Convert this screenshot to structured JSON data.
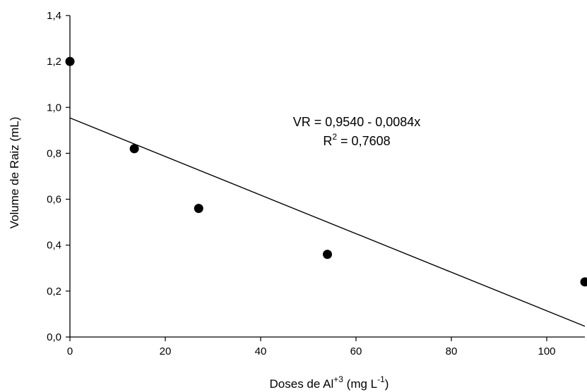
{
  "chart_data": {
    "type": "scatter",
    "xlabel": {
      "prefix": "Doses de Al",
      "sup1": "+3",
      "middle": " (mg L",
      "sup2": "-1",
      "suffix": ")"
    },
    "ylabel": "Volume de Raiz (mL)",
    "xlim": [
      0,
      108
    ],
    "ylim": [
      0.0,
      1.4
    ],
    "x_ticks": [
      0,
      20,
      40,
      60,
      80,
      100
    ],
    "x_tick_labels": [
      "0",
      "20",
      "40",
      "60",
      "80",
      "100"
    ],
    "y_ticks": [
      0.0,
      0.2,
      0.4,
      0.6,
      0.8,
      1.0,
      1.2,
      1.4
    ],
    "y_tick_labels": [
      "0,0",
      "0,2",
      "0,4",
      "0,6",
      "0,8",
      "1,0",
      "1,2",
      "1,4"
    ],
    "grid": false,
    "series": [
      {
        "points": [
          {
            "x": 0,
            "y": 1.2
          },
          {
            "x": 13.5,
            "y": 0.82
          },
          {
            "x": 27,
            "y": 0.56
          },
          {
            "x": 54,
            "y": 0.36
          },
          {
            "x": 108,
            "y": 0.24
          }
        ]
      }
    ],
    "regression": {
      "intercept": 0.954,
      "slope": -0.0084,
      "x_range": [
        0,
        108
      ],
      "equation_text": "VR = 0,9540 - 0,0084x",
      "r2_prefix": "R",
      "r2_sup": "2",
      "r2_text": " = 0,7608"
    },
    "colors": {
      "marker": "#000000",
      "line": "#000000",
      "axis": "#000000"
    }
  }
}
